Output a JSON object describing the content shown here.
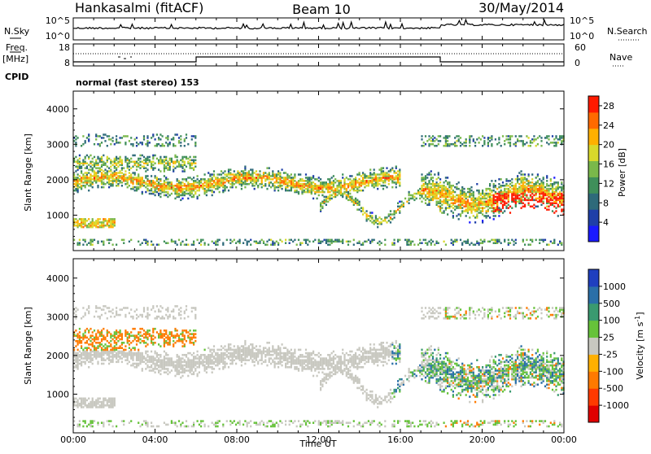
{
  "header": {
    "station": "Hankasalmi (fitACF)",
    "beam": "Beam 10",
    "date": "30/May/2014"
  },
  "aux_panels": {
    "nsky_label": "N.Sky",
    "nsearch_label": "N.Search",
    "nsky_ticks": [
      "10^5",
      "10^0"
    ],
    "nsearch_ticks": [
      "10^5",
      "10^0"
    ],
    "freq_label": "Freq.",
    "freq_unit": "[MHz]",
    "freq_ticks": [
      "18",
      "8"
    ],
    "nave_label": "Nave",
    "nave_ticks": [
      "60",
      "0"
    ],
    "cpid_label": "CPID",
    "cpid_text": "normal (fast stereo) 153"
  },
  "chart_data": [
    {
      "type": "heatmap",
      "name": "power-panel",
      "ylabel": "Slant Range [km]",
      "xlabel": "Time UT",
      "x_ticks": [
        "00:00",
        "04:00",
        "08:00",
        "12:00",
        "16:00",
        "20:00",
        "00:00"
      ],
      "y_ticks": [
        1000,
        2000,
        3000,
        4000
      ],
      "ylim": [
        0,
        4500
      ],
      "xlim_hours": [
        0,
        24
      ],
      "colorbar": {
        "label": "Power [dB]",
        "ticks": [
          4,
          8,
          12,
          16,
          20,
          24,
          28
        ],
        "range": [
          0,
          30
        ],
        "colors": [
          "#1a1aff",
          "#1f3fa8",
          "#2e6a7a",
          "#3f8f5a",
          "#7ab84a",
          "#d9d92b",
          "#ffb000",
          "#ff6a00",
          "#ff1a00"
        ]
      }
    },
    {
      "type": "heatmap",
      "name": "velocity-panel",
      "ylabel": "Slant Range [km]",
      "xlabel": "Time UT",
      "x_ticks": [
        "00:00",
        "04:00",
        "08:00",
        "12:00",
        "16:00",
        "20:00",
        "00:00"
      ],
      "y_ticks": [
        1000,
        2000,
        3000,
        4000
      ],
      "ylim": [
        0,
        4500
      ],
      "xlim_hours": [
        0,
        24
      ],
      "colorbar": {
        "label": "Velocity [m s^-1]",
        "ticks": [
          "1000",
          "500",
          "100",
          "25",
          "-25",
          "-100",
          "-500",
          "-1000"
        ],
        "colors": [
          "#1f3fbf",
          "#2a6fa8",
          "#3a9a70",
          "#66c23a",
          "#c8c8c0",
          "#ffb000",
          "#ff7a00",
          "#ff3a00",
          "#e00000"
        ]
      }
    }
  ],
  "colors": {
    "ground_scatter": "#c8c8c0",
    "frame": "#000000"
  }
}
